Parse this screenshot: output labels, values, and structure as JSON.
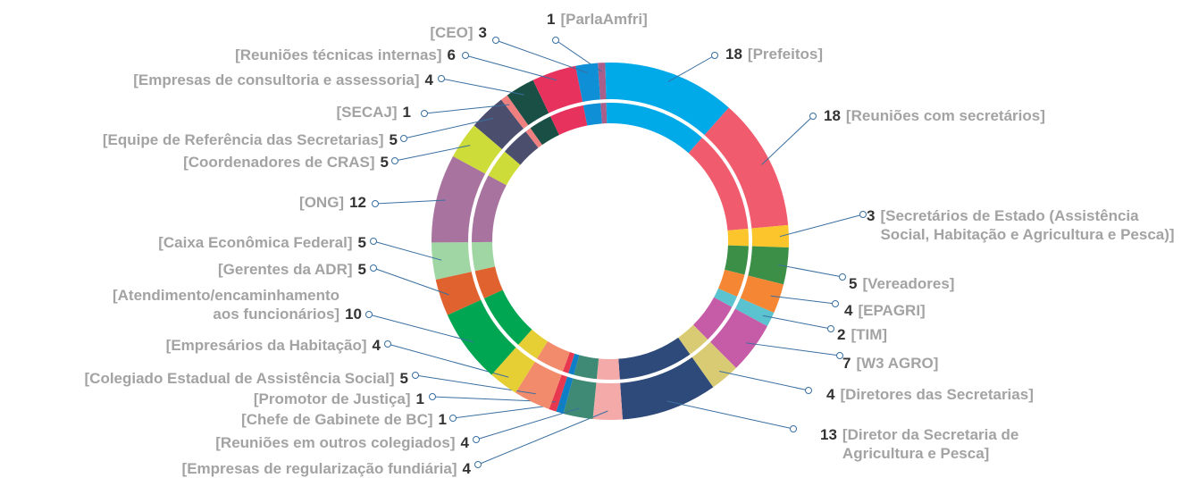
{
  "chart_data": {
    "type": "donut",
    "categories": [
      "[ParlaAmfri]",
      "[Prefeitos]",
      "[Reuniões com secretários]",
      "[Secretários de Estado (Assistência Social, Habitação e Agricultura e Pesca)]",
      "[Vereadores]",
      "[EPAGRI]",
      "[TIM]",
      "[W3 AGRO]",
      "[Diretores das Secretarias]",
      "[Diretor da Secretaria de Agricultura e Pesca]",
      "[Empresas de regularização fundiária]",
      "[Reuniões em outros colegiados]",
      "[Chefe de Gabinete de BC]",
      "[Promotor de Justiça]",
      "[Colegiado Estadual de Assistência Social]",
      "[Empresários da Habitação]",
      "[Atendimento/encaminhamento aos funcionários]",
      "[Gerentes da ADR]",
      "[Caixa Econômica Federal]",
      "[ONG]",
      "[Coordenadores de CRAS]",
      "[Equipe de Referência das Secretarias]",
      "[SECAJ]",
      "[Empresas de consultoria e assessoria]",
      "[Reuniões técnicas internas]",
      "[CEO]"
    ],
    "values": [
      1,
      18,
      18,
      3,
      5,
      4,
      2,
      7,
      4,
      13,
      4,
      4,
      1,
      1,
      5,
      4,
      10,
      5,
      5,
      12,
      5,
      5,
      1,
      4,
      6,
      3
    ],
    "colors": [
      "#a8608a",
      "#00a9e8",
      "#f05c6e",
      "#fbc52b",
      "#3b8f47",
      "#f58634",
      "#5bc3d0",
      "#c65ba7",
      "#d8cb73",
      "#2e4a7a",
      "#f5aaaa",
      "#3e8a74",
      "#0e7fc7",
      "#e8384f",
      "#f28b6b",
      "#e6cf35",
      "#00a651",
      "#e0622f",
      "#9fd6a3",
      "#a8749f",
      "#cddc39",
      "#4c4e6e",
      "#f08080",
      "#1a4f46",
      "#e8325e",
      "#0f8fd6"
    ]
  }
}
